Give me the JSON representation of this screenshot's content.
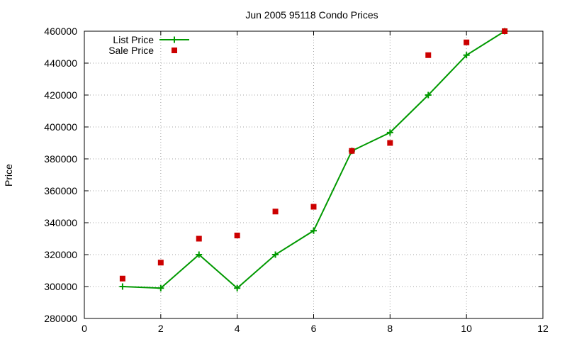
{
  "chart_data": {
    "type": "line",
    "title": "Jun 2005 95118 Condo Prices",
    "xlabel": "",
    "ylabel": "Price",
    "xlim": [
      0,
      12
    ],
    "ylim": [
      280000,
      460000
    ],
    "x_ticks": [
      0,
      2,
      4,
      6,
      8,
      10,
      12
    ],
    "y_ticks": [
      280000,
      300000,
      320000,
      340000,
      360000,
      380000,
      400000,
      420000,
      440000,
      460000
    ],
    "grid": true,
    "legend_position": "top-left",
    "series": [
      {
        "name": "List Price",
        "style": "line-with-plus-markers",
        "color": "#009900",
        "x": [
          1,
          2,
          3,
          4,
          5,
          6,
          7,
          8,
          9,
          10,
          11
        ],
        "y": [
          300000,
          299000,
          320000,
          299000,
          320000,
          335000,
          385000,
          396500,
          420000,
          445000,
          460000
        ]
      },
      {
        "name": "Sale Price",
        "style": "square-markers",
        "color": "#cc0000",
        "x": [
          1,
          2,
          3,
          4,
          5,
          6,
          7,
          8,
          9,
          10,
          11
        ],
        "y": [
          305000,
          315000,
          330000,
          332000,
          347000,
          350000,
          385000,
          390000,
          445000,
          453000,
          460000
        ]
      }
    ]
  }
}
